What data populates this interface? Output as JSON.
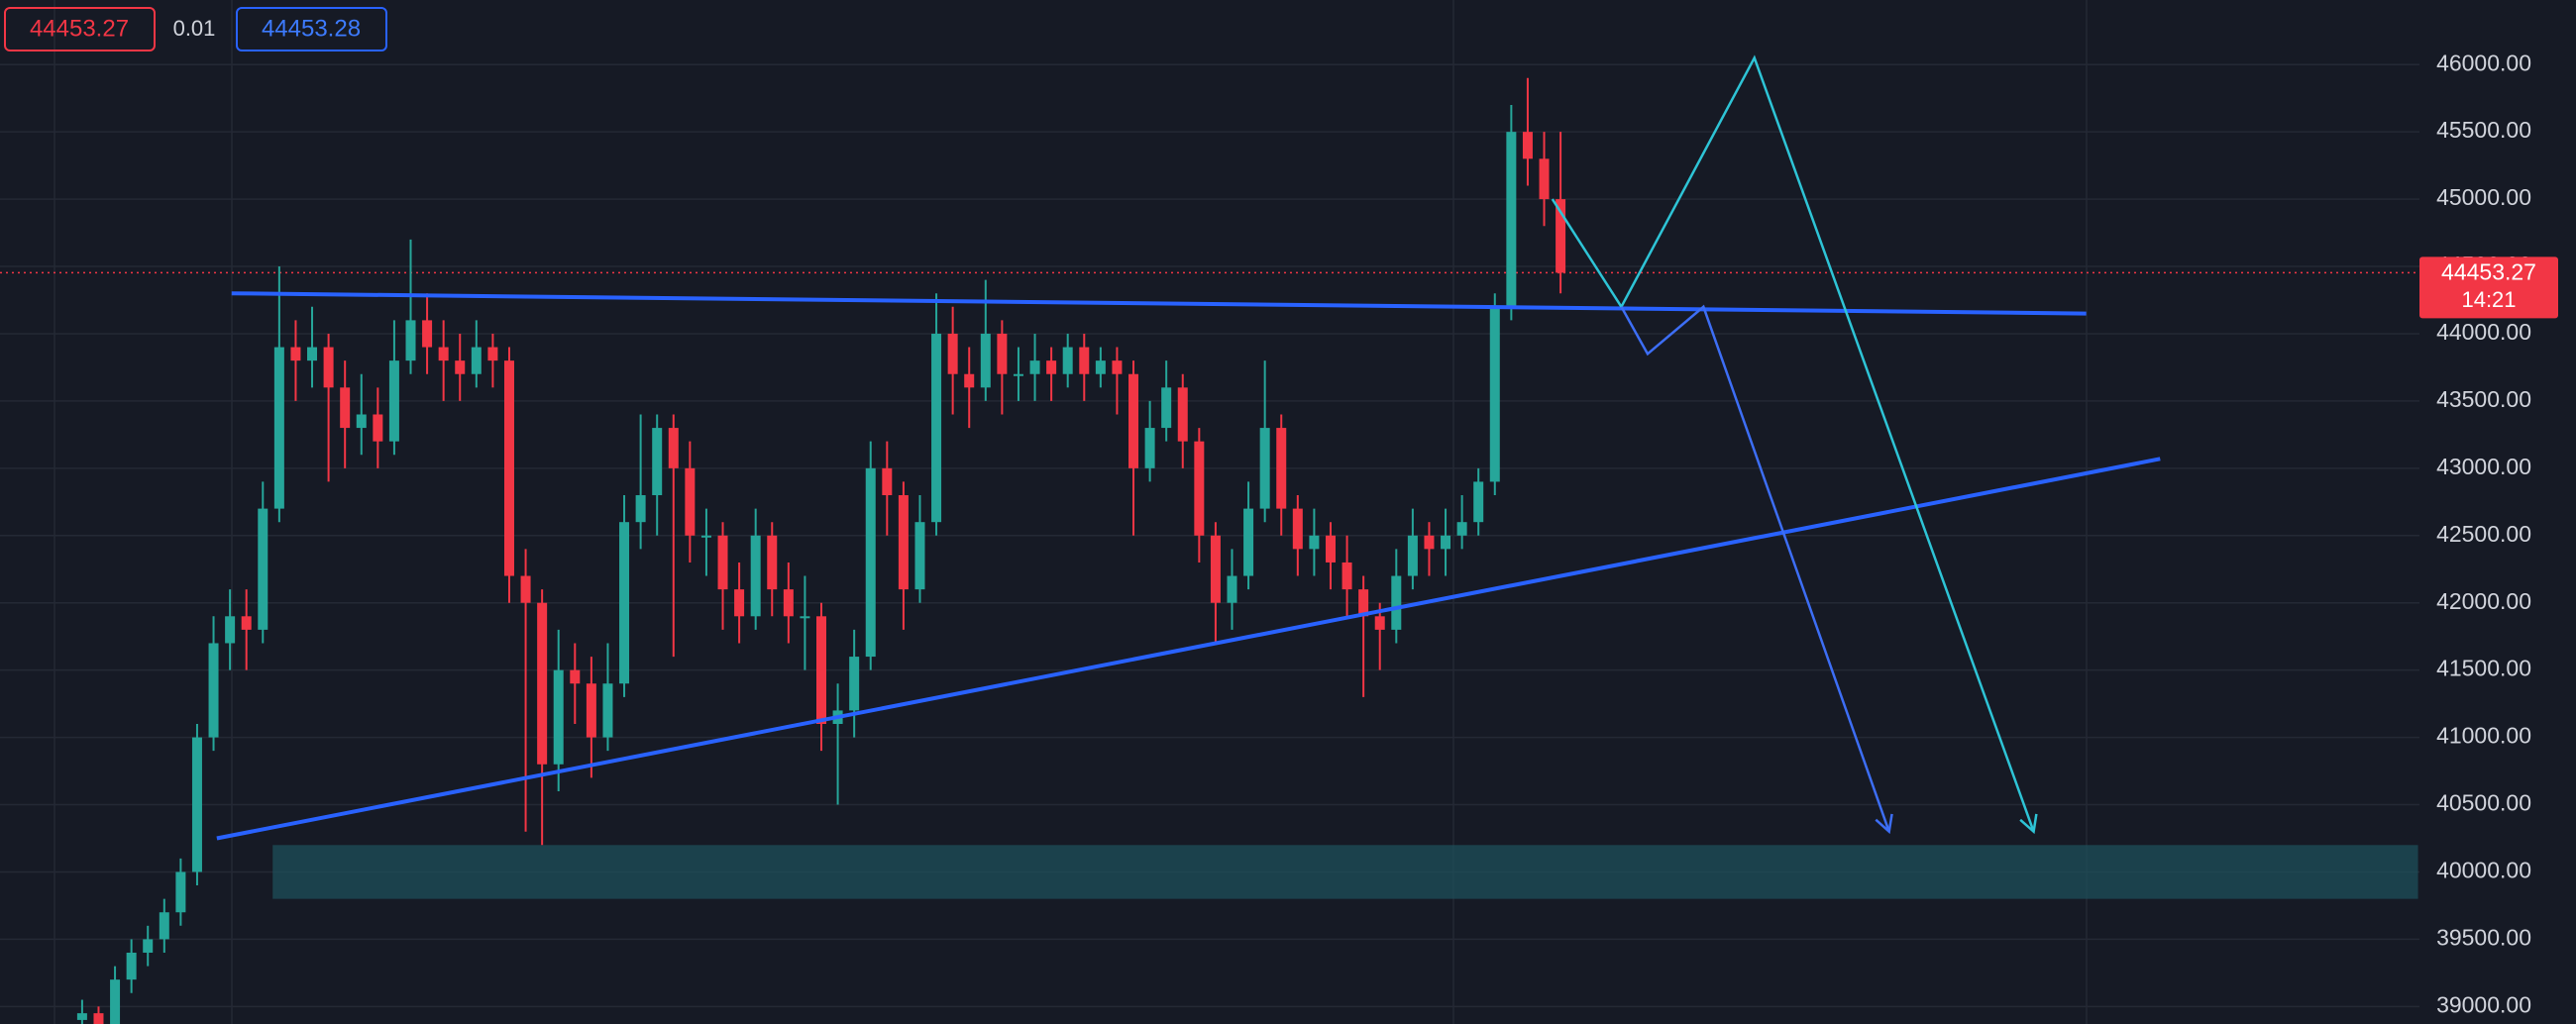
{
  "chart_data": {
    "type": "candlestick",
    "bid": 44453.27,
    "spread": 0.01,
    "ask": 44453.28,
    "last_price": 44453.27,
    "countdown": "14:21",
    "up_color": "#26a69a",
    "down_color": "#f23645",
    "grid": true,
    "ylim": [
      38870,
      46480
    ],
    "yticks": [
      {
        "value": 39000,
        "label": "39000.00"
      },
      {
        "value": 39500,
        "label": "39500.00"
      },
      {
        "value": 40000,
        "label": "40000.00"
      },
      {
        "value": 40500,
        "label": "40500.00"
      },
      {
        "value": 41000,
        "label": "41000.00"
      },
      {
        "value": 41500,
        "label": "41500.00"
      },
      {
        "value": 42000,
        "label": "42000.00"
      },
      {
        "value": 42500,
        "label": "42500.00"
      },
      {
        "value": 43000,
        "label": "43000.00"
      },
      {
        "value": 43500,
        "label": "43500.00"
      },
      {
        "value": 44000,
        "label": "44000.00"
      },
      {
        "value": 44500,
        "label": "44500.00"
      },
      {
        "value": 45000,
        "label": "45000.00"
      },
      {
        "value": 45500,
        "label": "45500.00"
      },
      {
        "value": 46000,
        "label": "46000.00"
      }
    ],
    "open": [
      38900,
      38950,
      38800,
      39200,
      39400,
      39500,
      39700,
      40000,
      41000,
      41700,
      41900,
      41800,
      42700,
      43900,
      43800,
      43900,
      43600,
      43300,
      43400,
      43200,
      43800,
      44100,
      43900,
      43800,
      43700,
      43900,
      43800,
      42200,
      42000,
      40800,
      41500,
      41400,
      41000,
      41400,
      42600,
      42800,
      43300,
      43000,
      42500,
      42500,
      42100,
      41900,
      42500,
      42100,
      41900,
      41900,
      41100,
      41200,
      41600,
      43000,
      42800,
      42100,
      42600,
      44000,
      43700,
      43600,
      44000,
      43700,
      43700,
      43800,
      43700,
      43900,
      43700,
      43800,
      43700,
      43000,
      43300,
      43600,
      43200,
      42500,
      42000,
      42200,
      42700,
      43300,
      42700,
      42400,
      42500,
      42300,
      42100,
      41900,
      41800,
      42200,
      42500,
      42400,
      42500,
      42600,
      42900,
      44200,
      45500,
      45300,
      45000
    ],
    "high": [
      39050,
      39000,
      39300,
      39500,
      39600,
      39800,
      40100,
      41100,
      41900,
      42100,
      42100,
      42900,
      44500,
      44100,
      44200,
      44000,
      43800,
      43700,
      43600,
      44100,
      44700,
      44300,
      44100,
      44000,
      44100,
      44000,
      43900,
      42400,
      42100,
      41800,
      41700,
      41600,
      41700,
      42800,
      43400,
      43400,
      43400,
      43200,
      42700,
      42600,
      42300,
      42700,
      42600,
      42300,
      42200,
      42000,
      41400,
      41800,
      43200,
      43200,
      42900,
      42800,
      44300,
      44200,
      43900,
      44400,
      44100,
      43900,
      44000,
      43900,
      44000,
      44000,
      43900,
      43900,
      43800,
      43500,
      43800,
      43700,
      43300,
      42600,
      42400,
      42900,
      43800,
      43400,
      42800,
      42700,
      42600,
      42500,
      42200,
      42000,
      42400,
      42700,
      42600,
      42700,
      42800,
      43000,
      44300,
      45700,
      45900,
      45500,
      45500
    ],
    "low": [
      38800,
      38700,
      38750,
      39100,
      39300,
      39400,
      39600,
      39900,
      40900,
      41500,
      41500,
      41700,
      42600,
      43500,
      43600,
      42900,
      43000,
      43100,
      43000,
      43100,
      43700,
      43700,
      43500,
      43500,
      43600,
      43600,
      42000,
      40300,
      40200,
      40600,
      41100,
      40700,
      40900,
      41300,
      42400,
      42500,
      41600,
      42300,
      42200,
      41800,
      41700,
      41800,
      41900,
      41700,
      41500,
      40900,
      40500,
      41000,
      41500,
      42500,
      41800,
      42000,
      42500,
      43400,
      43300,
      43500,
      43400,
      43500,
      43500,
      43500,
      43600,
      43500,
      43600,
      43400,
      42500,
      42900,
      43200,
      43000,
      42300,
      41700,
      41800,
      42100,
      42600,
      42500,
      42200,
      42200,
      42100,
      41900,
      41300,
      41500,
      41700,
      42100,
      42200,
      42200,
      42400,
      42500,
      42800,
      44100,
      45100,
      44800,
      44300
    ],
    "close": [
      38950,
      38800,
      39200,
      39400,
      39500,
      39700,
      40000,
      41000,
      41700,
      41900,
      41800,
      42700,
      43900,
      43800,
      43900,
      43600,
      43300,
      43400,
      43200,
      43800,
      44100,
      43900,
      43800,
      43700,
      43900,
      43800,
      42200,
      42000,
      40800,
      41500,
      41400,
      41000,
      41400,
      42600,
      42800,
      43300,
      43000,
      42500,
      42500,
      42100,
      41900,
      42500,
      42100,
      41900,
      41900,
      41100,
      41200,
      41600,
      43000,
      42800,
      42100,
      42600,
      44000,
      43700,
      43600,
      44000,
      43700,
      43700,
      43800,
      43700,
      43900,
      43700,
      43800,
      43700,
      43000,
      43300,
      43600,
      43200,
      42500,
      42000,
      42200,
      42700,
      43300,
      42700,
      42400,
      42500,
      42300,
      42100,
      41900,
      41800,
      42200,
      42500,
      42400,
      42500,
      42600,
      42900,
      44200,
      45500,
      45300,
      45000,
      44453.27
    ],
    "drawings": {
      "zone": {
        "color": "#1e4f5a",
        "x": [
          11.6,
          142.2
        ],
        "y": [
          39800,
          40200
        ]
      },
      "lines": [
        {
          "color": "#2962ff",
          "x": [
            9.1,
            122
          ],
          "y": [
            44300,
            44150
          ],
          "arrow": false
        },
        {
          "color": "#2962ff",
          "x": [
            8.2,
            126.5
          ],
          "y": [
            40250,
            43070
          ],
          "arrow": false
        },
        {
          "color": "#2ec4d6",
          "x": [
            89.5,
            93.7,
            101.8,
            118.8
          ],
          "y": [
            45000,
            44200,
            46050,
            40300
          ],
          "arrow": true
        },
        {
          "color": "#3d6ef5",
          "x": [
            93.7,
            95.3,
            98.7,
            110
          ],
          "y": [
            44200,
            43850,
            44200,
            40300
          ],
          "arrow": true
        }
      ]
    }
  }
}
